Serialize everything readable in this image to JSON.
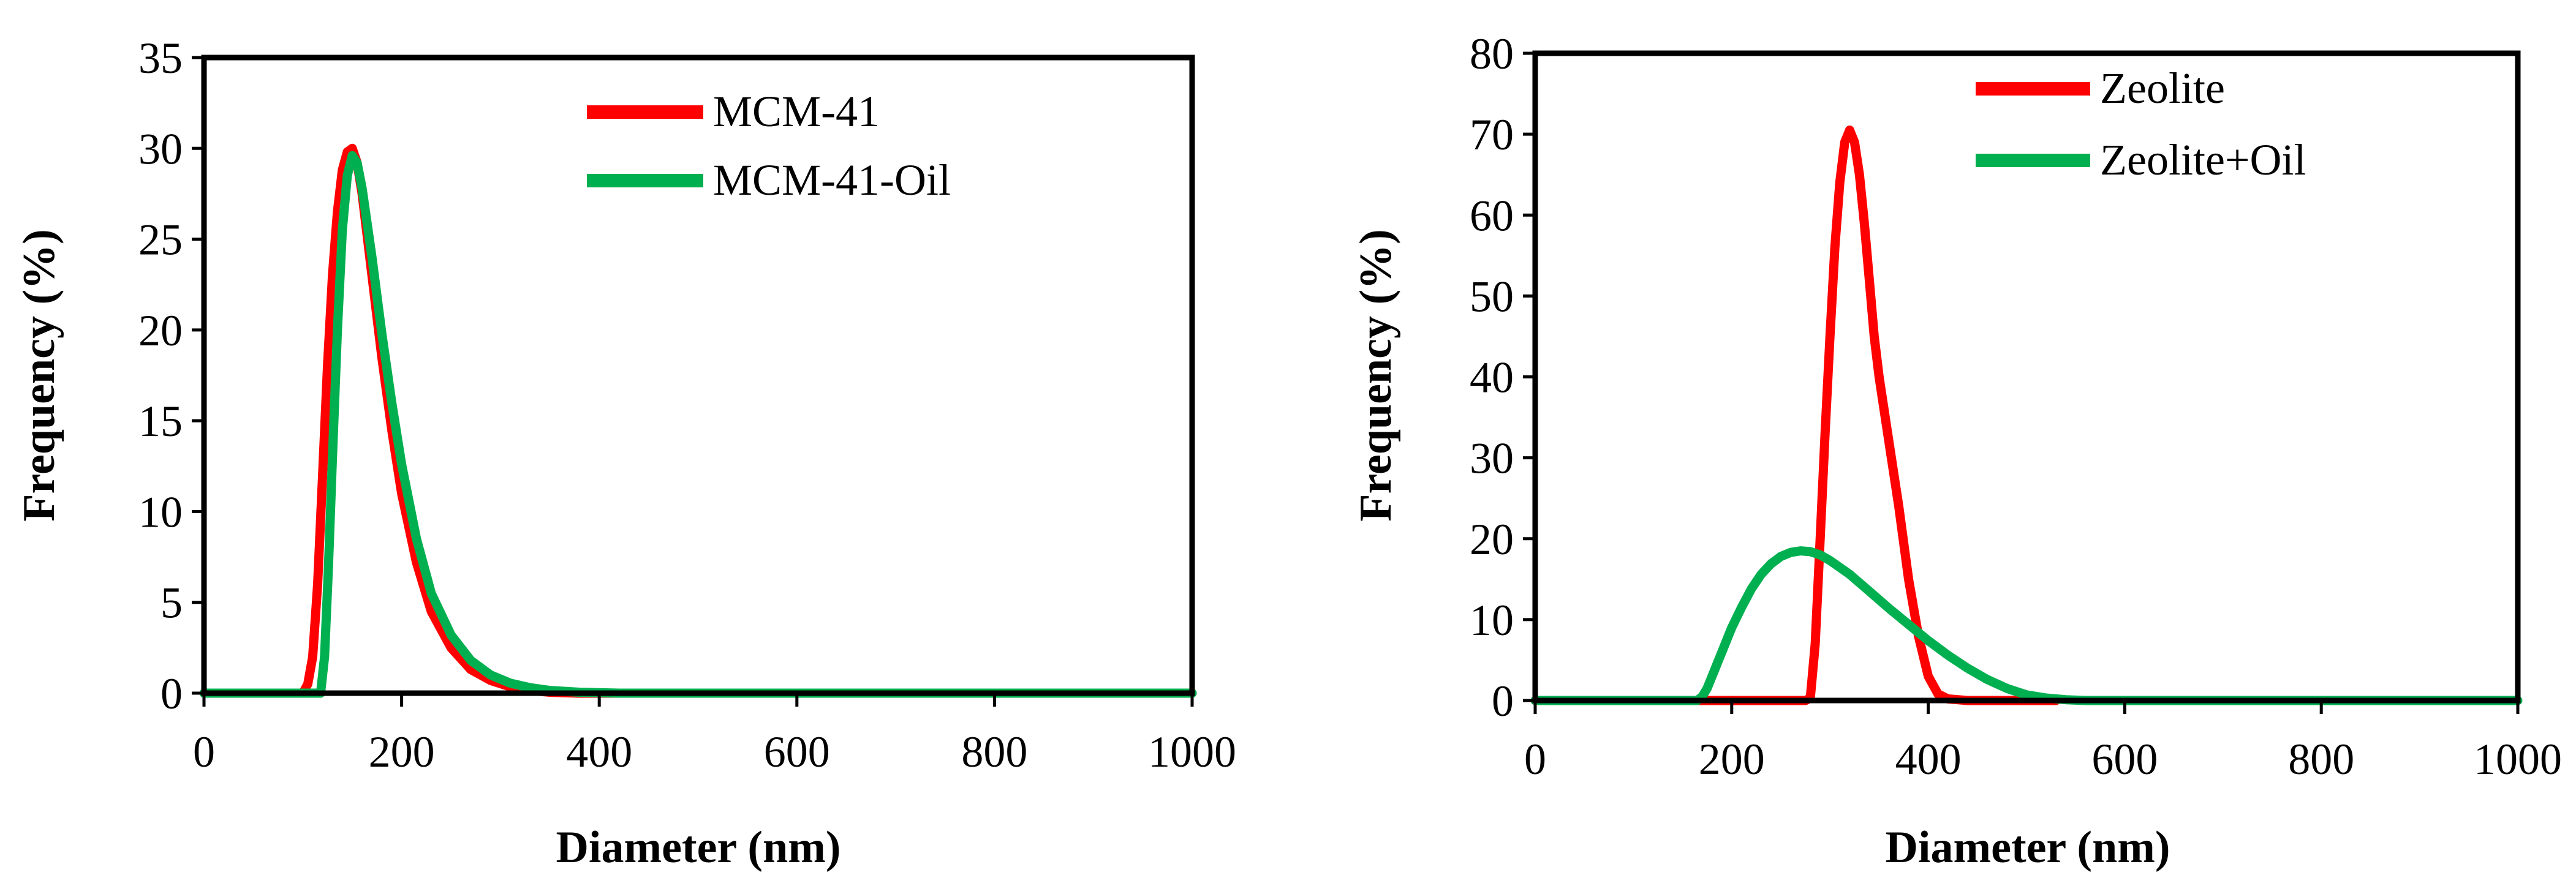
{
  "chart_data": [
    {
      "type": "line",
      "title": "",
      "xlabel": "Diameter (nm)",
      "ylabel": "Frequency (%)",
      "xlim": [
        0,
        1000
      ],
      "ylim": [
        0,
        35
      ],
      "xticks": [
        0,
        200,
        400,
        600,
        800,
        1000
      ],
      "yticks": [
        0,
        5,
        10,
        15,
        20,
        25,
        30,
        35
      ],
      "grid": false,
      "legend": "top-right",
      "series": [
        {
          "name": "MCM-41",
          "color": "#ff0000",
          "x": [
            0,
            100,
            105,
            110,
            115,
            120,
            125,
            130,
            135,
            140,
            145,
            150,
            155,
            160,
            170,
            180,
            190,
            200,
            215,
            230,
            250,
            270,
            290,
            310,
            330,
            350,
            380,
            420,
            500,
            1000
          ],
          "y": [
            0,
            0,
            0.5,
            2,
            6,
            12,
            18,
            23,
            26.5,
            28.8,
            29.8,
            30,
            29.2,
            27.5,
            23,
            18.5,
            14.5,
            11,
            7.2,
            4.5,
            2.5,
            1.3,
            0.7,
            0.35,
            0.15,
            0.05,
            0,
            0,
            0,
            0
          ]
        },
        {
          "name": "MCM-41-Oil",
          "color": "#00b050",
          "x": [
            0,
            118,
            122,
            126,
            130,
            135,
            140,
            145,
            150,
            155,
            160,
            170,
            180,
            190,
            200,
            215,
            230,
            250,
            270,
            290,
            310,
            330,
            350,
            380,
            420,
            500,
            1000
          ],
          "y": [
            0,
            0,
            2,
            7,
            13,
            20,
            25.5,
            28.5,
            29.6,
            29.2,
            27.8,
            24,
            19.8,
            16,
            12.6,
            8.5,
            5.5,
            3.2,
            1.8,
            1,
            0.55,
            0.3,
            0.15,
            0.05,
            0,
            0,
            0
          ]
        }
      ]
    },
    {
      "type": "line",
      "title": "",
      "xlabel": "Diameter (nm)",
      "ylabel": "Frequency (%)",
      "xlim": [
        0,
        1000
      ],
      "ylim": [
        0,
        80
      ],
      "xticks": [
        0,
        200,
        400,
        600,
        800,
        1000
      ],
      "yticks": [
        0,
        10,
        20,
        30,
        40,
        50,
        60,
        70,
        80
      ],
      "grid": false,
      "legend": "top-right",
      "series": [
        {
          "name": "Zeolite",
          "color": "#ff0000",
          "x": [
            0,
            275,
            280,
            285,
            290,
            295,
            300,
            305,
            310,
            315,
            320,
            325,
            330,
            335,
            340,
            345,
            350,
            360,
            370,
            380,
            390,
            400,
            410,
            420,
            440,
            460,
            500,
            530,
            1000
          ],
          "y": [
            0,
            0,
            0.3,
            7,
            20,
            33,
            45,
            56,
            64,
            69,
            70.5,
            69,
            65,
            59,
            52,
            45,
            40,
            32,
            24,
            15,
            8,
            3,
            0.8,
            0.2,
            0,
            0,
            0,
            0,
            0
          ],
          "shown_x_range": [
            0,
            530
          ]
        },
        {
          "name": "Zeolite+Oil",
          "color": "#00b050",
          "x": [
            0,
            165,
            170,
            175,
            180,
            190,
            200,
            210,
            220,
            230,
            240,
            250,
            260,
            270,
            280,
            290,
            300,
            320,
            340,
            360,
            380,
            400,
            420,
            440,
            460,
            480,
            500,
            520,
            540,
            560,
            600,
            1000
          ],
          "y": [
            0,
            0,
            0.5,
            1.5,
            3,
            6,
            9,
            11.5,
            13.8,
            15.6,
            16.9,
            17.8,
            18.3,
            18.5,
            18.4,
            18,
            17.3,
            15.6,
            13.5,
            11.4,
            9.4,
            7.4,
            5.6,
            4,
            2.6,
            1.5,
            0.7,
            0.3,
            0.1,
            0,
            0,
            0
          ]
        }
      ]
    }
  ]
}
